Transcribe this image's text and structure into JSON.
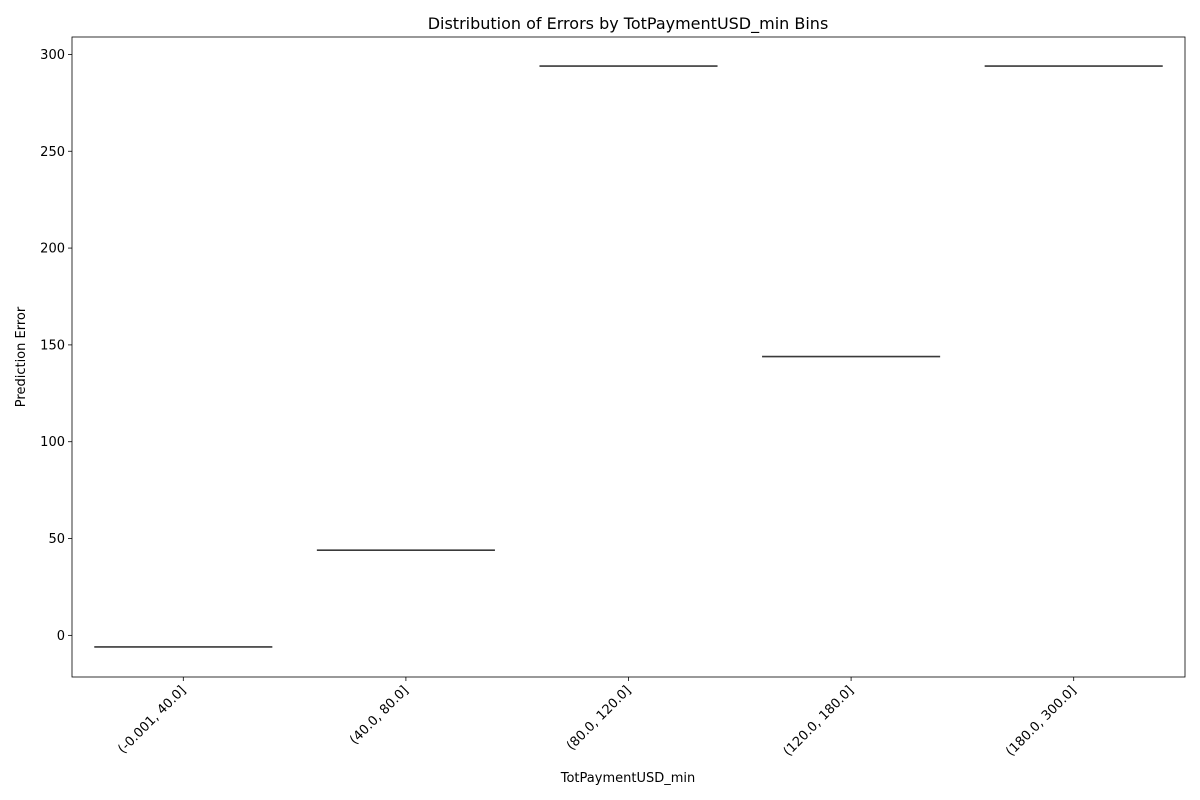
{
  "chart_data": {
    "type": "box",
    "title": "Distribution of Errors by TotPaymentUSD_min Bins",
    "xlabel": "TotPaymentUSD_min",
    "ylabel": "Prediction Error",
    "categories": [
      "(-0.001, 40.0]",
      "(40.0, 80.0]",
      "(80.0, 120.0]",
      "(120.0, 180.0]",
      "(180.0, 300.0]"
    ],
    "values": [
      -6,
      44,
      294,
      144,
      294
    ],
    "ylim": [
      -21.5,
      309
    ],
    "yticks": [
      0,
      50,
      100,
      150,
      200,
      250,
      300
    ],
    "grid": false,
    "colors": {
      "median_line": "#3a3a3a",
      "axes": "#000000"
    }
  }
}
